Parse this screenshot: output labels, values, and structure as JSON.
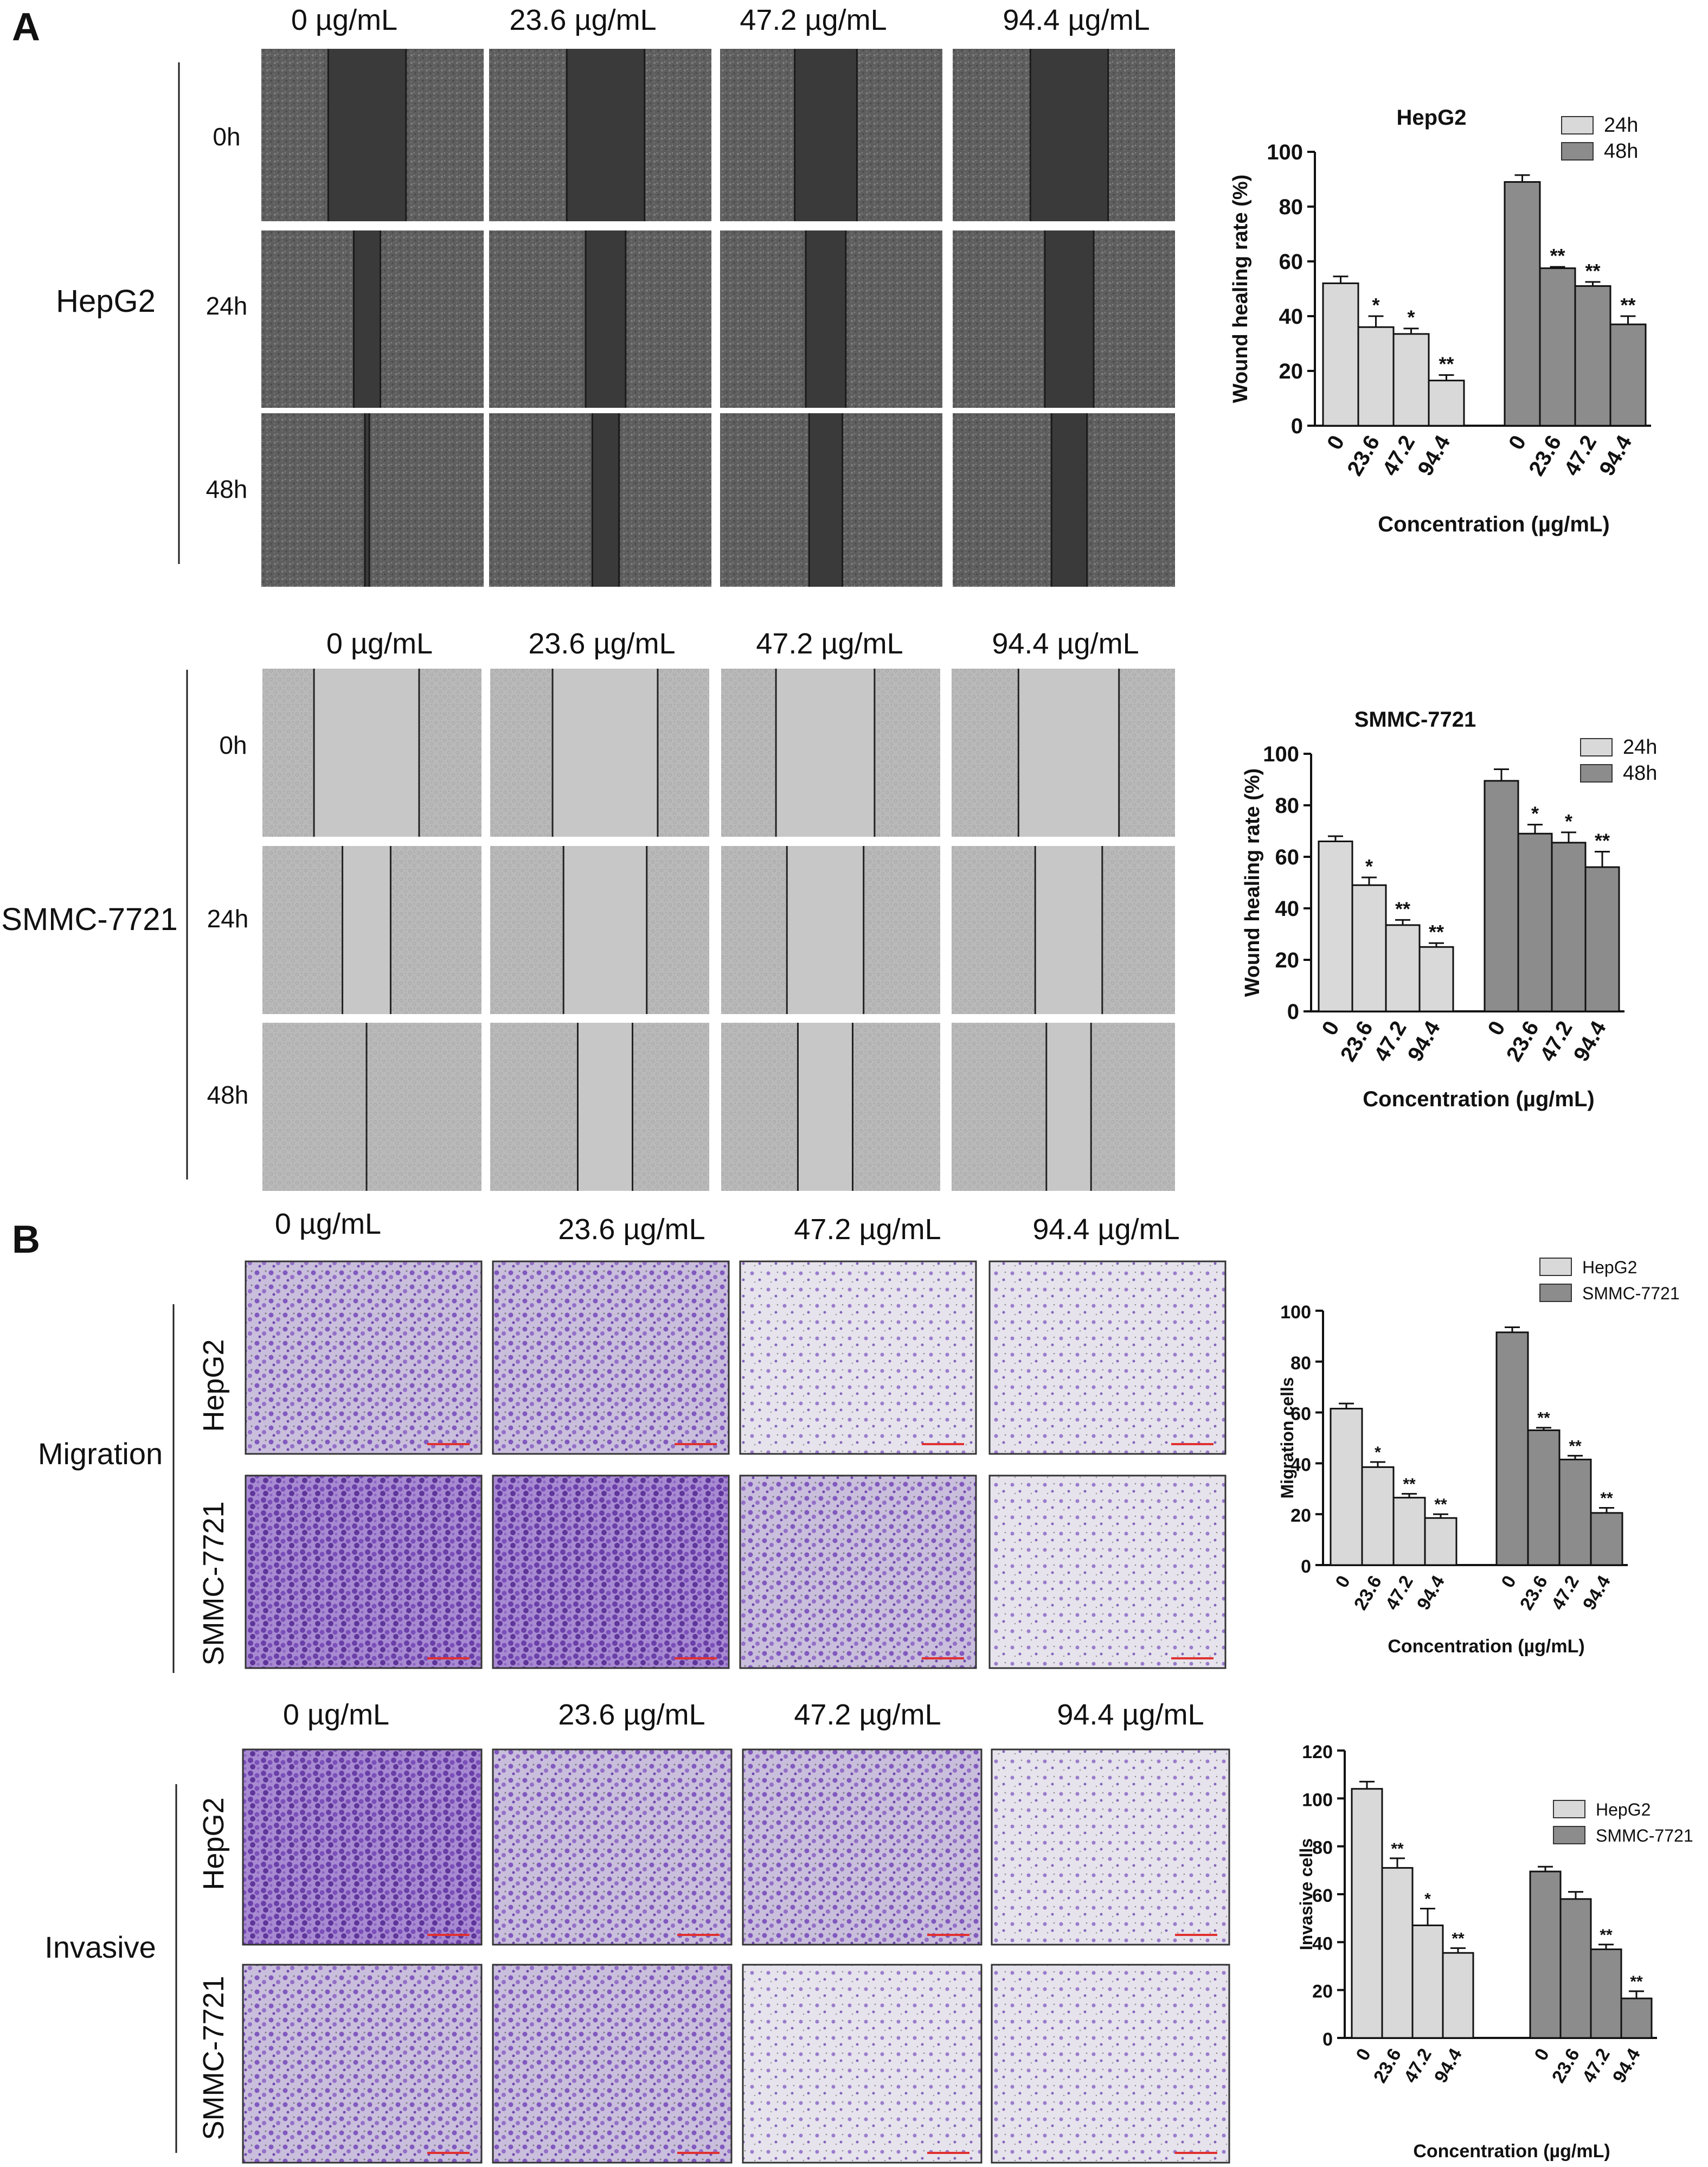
{
  "panels": {
    "A": "A",
    "B": "B"
  },
  "concentrations": [
    "0 µg/mL",
    "23.6 µg/mL",
    "47.2 µg/mL",
    "94.4 µg/mL"
  ],
  "concentrations_smmc_header": [
    "0 µg/mL",
    "23.6 µg/mL",
    "47.2 µg/mL",
    "94.4 µg/mL"
  ],
  "time_points": [
    "0h",
    "24h",
    "48h"
  ],
  "cell_lines": [
    "HepG2",
    "SMMC-7721"
  ],
  "assays": [
    "Migration",
    "Invasive"
  ],
  "colors": {
    "light_bar": "#d9d9d9",
    "dark_bar": "#8c8c8c",
    "wound_bg_hepg2": "#6f6f6f",
    "wound_gap_hepg2": "#3a3a3a",
    "wound_bg_smmc": "#bdbdbd",
    "wound_gap_smmc": "#c7c7c7",
    "crystal_violet": "#8a5cc8",
    "scale_bar": "#e03030"
  },
  "chart_data": [
    {
      "id": "hepg2-wound",
      "type": "bar",
      "title": "HepG2",
      "xlabel": "Concentration (µg/mL)",
      "ylabel": "Wound healing rate (%)",
      "categories": [
        "0",
        "23.6",
        "47.2",
        "94.4"
      ],
      "ylim": [
        0,
        100
      ],
      "yticks": [
        0,
        20,
        40,
        60,
        80,
        100
      ],
      "legend_position": "top-right",
      "series": [
        {
          "name": "24h",
          "values": [
            52,
            36,
            33.5,
            16.5
          ],
          "errors": [
            2.5,
            4,
            2,
            2
          ],
          "sig": [
            "",
            "*",
            "*",
            "**"
          ],
          "color": "#d9d9d9"
        },
        {
          "name": "48h",
          "values": [
            89,
            57.5,
            51,
            37
          ],
          "errors": [
            2.5,
            0.5,
            1.5,
            3
          ],
          "sig": [
            "",
            "**",
            "**",
            "**"
          ],
          "color": "#8c8c8c"
        }
      ]
    },
    {
      "id": "smmc-wound",
      "type": "bar",
      "title": "SMMC-7721",
      "xlabel": "Concentration (µg/mL)",
      "ylabel": "Wound healing rate (%)",
      "categories": [
        "0",
        "23.6",
        "47.2",
        "94.4"
      ],
      "ylim": [
        0,
        100
      ],
      "yticks": [
        0,
        20,
        40,
        60,
        80,
        100
      ],
      "legend_position": "top-right",
      "series": [
        {
          "name": "24h",
          "values": [
            66,
            49,
            33.5,
            25
          ],
          "errors": [
            2,
            3,
            2,
            1.5
          ],
          "sig": [
            "",
            "*",
            "**",
            "**"
          ],
          "color": "#d9d9d9"
        },
        {
          "name": "48h",
          "values": [
            89.5,
            69,
            65.5,
            56
          ],
          "errors": [
            4.5,
            3.5,
            4,
            6
          ],
          "sig": [
            "",
            "*",
            "*",
            "**"
          ],
          "color": "#8c8c8c"
        }
      ]
    },
    {
      "id": "migration",
      "type": "bar",
      "title": "",
      "xlabel": "Concentration (µg/mL)",
      "ylabel": "Migration cells",
      "categories": [
        "0",
        "23.6",
        "47.2",
        "94.4"
      ],
      "ylim": [
        0,
        100
      ],
      "yticks": [
        0,
        20,
        40,
        60,
        80,
        100
      ],
      "legend_position": "top-right",
      "series": [
        {
          "name": "HepG2",
          "values": [
            61.5,
            38.5,
            26.5,
            18.5
          ],
          "errors": [
            2,
            2,
            1.5,
            1.5
          ],
          "sig": [
            "",
            "*",
            "**",
            "**"
          ],
          "color": "#d9d9d9"
        },
        {
          "name": "SMMC-7721",
          "values": [
            91.5,
            53,
            41.5,
            20.5
          ],
          "errors": [
            2,
            1,
            1.5,
            2
          ],
          "sig": [
            "",
            "**",
            "**",
            "**"
          ],
          "color": "#8c8c8c"
        }
      ]
    },
    {
      "id": "invasive",
      "type": "bar",
      "title": "",
      "xlabel": "Concentration (µg/mL)",
      "ylabel": "Invasive cells",
      "categories": [
        "0",
        "23.6",
        "47.2",
        "94.4"
      ],
      "ylim": [
        0,
        120
      ],
      "yticks": [
        0,
        20,
        40,
        60,
        80,
        100,
        120
      ],
      "legend_position": "top-right",
      "series": [
        {
          "name": "HepG2",
          "values": [
            104,
            71,
            47,
            35.5
          ],
          "errors": [
            3,
            4,
            7,
            2
          ],
          "sig": [
            "",
            "**",
            "*",
            "**"
          ],
          "color": "#d9d9d9"
        },
        {
          "name": "SMMC-7721",
          "values": [
            69.5,
            58,
            37,
            16.5
          ],
          "errors": [
            2,
            3,
            2,
            3
          ],
          "sig": [
            "",
            "",
            "**",
            "**"
          ],
          "color": "#8c8c8c"
        }
      ]
    }
  ]
}
